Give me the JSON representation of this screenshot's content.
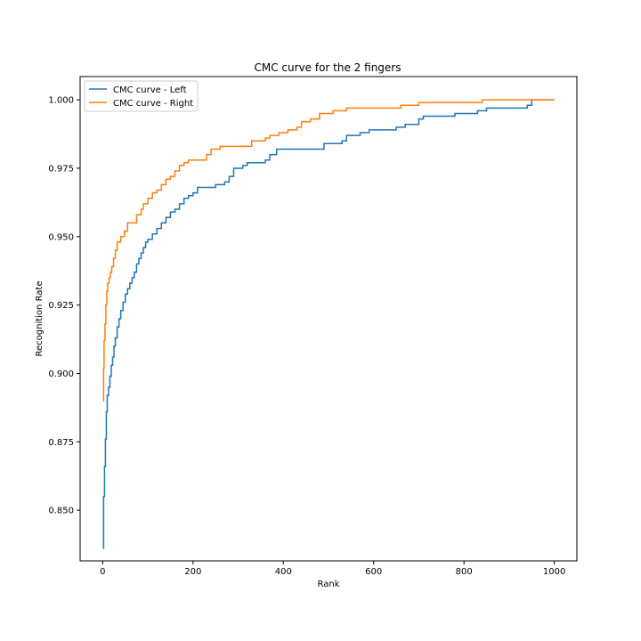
{
  "chart_data": {
    "type": "line",
    "title": "CMC curve for the 2 fingers",
    "xlabel": "Rank",
    "ylabel": "Recognition Rate",
    "xlim": [
      -50,
      1050
    ],
    "ylim": [
      0.8315,
      1.0085
    ],
    "xticks": [
      0,
      200,
      400,
      600,
      800,
      1000
    ],
    "yticks": [
      0.85,
      0.875,
      0.9,
      0.925,
      0.95,
      0.975,
      1.0
    ],
    "xtick_labels": [
      "0",
      "200",
      "400",
      "600",
      "800",
      "1000"
    ],
    "ytick_labels": [
      "0.850",
      "0.875",
      "0.900",
      "0.925",
      "0.950",
      "0.975",
      "1.000"
    ],
    "grid": false,
    "legend_position": "top-left",
    "series": [
      {
        "name": "CMC curve - Left",
        "color": "#1f77b4",
        "step": true,
        "points": [
          [
            1,
            0.836
          ],
          [
            2,
            0.855
          ],
          [
            4,
            0.866
          ],
          [
            6,
            0.876
          ],
          [
            8,
            0.886
          ],
          [
            10,
            0.892
          ],
          [
            13,
            0.895
          ],
          [
            16,
            0.899
          ],
          [
            19,
            0.903
          ],
          [
            22,
            0.906
          ],
          [
            25,
            0.91
          ],
          [
            28,
            0.913
          ],
          [
            32,
            0.917
          ],
          [
            36,
            0.92
          ],
          [
            40,
            0.923
          ],
          [
            45,
            0.926
          ],
          [
            50,
            0.929
          ],
          [
            55,
            0.931
          ],
          [
            60,
            0.933
          ],
          [
            65,
            0.935
          ],
          [
            70,
            0.937
          ],
          [
            75,
            0.94
          ],
          [
            80,
            0.942
          ],
          [
            85,
            0.944
          ],
          [
            90,
            0.946
          ],
          [
            95,
            0.948
          ],
          [
            100,
            0.949
          ],
          [
            110,
            0.951
          ],
          [
            120,
            0.953
          ],
          [
            130,
            0.955
          ],
          [
            140,
            0.957
          ],
          [
            150,
            0.959
          ],
          [
            160,
            0.96
          ],
          [
            170,
            0.962
          ],
          [
            180,
            0.964
          ],
          [
            190,
            0.965
          ],
          [
            200,
            0.966
          ],
          [
            210,
            0.968
          ],
          [
            240,
            0.968
          ],
          [
            250,
            0.969
          ],
          [
            270,
            0.97
          ],
          [
            280,
            0.972
          ],
          [
            290,
            0.975
          ],
          [
            310,
            0.976
          ],
          [
            320,
            0.977
          ],
          [
            350,
            0.977
          ],
          [
            360,
            0.978
          ],
          [
            370,
            0.98
          ],
          [
            385,
            0.982
          ],
          [
            470,
            0.982
          ],
          [
            490,
            0.984
          ],
          [
            530,
            0.985
          ],
          [
            540,
            0.987
          ],
          [
            570,
            0.988
          ],
          [
            590,
            0.989
          ],
          [
            650,
            0.99
          ],
          [
            670,
            0.991
          ],
          [
            700,
            0.993
          ],
          [
            710,
            0.994
          ],
          [
            760,
            0.994
          ],
          [
            780,
            0.995
          ],
          [
            830,
            0.996
          ],
          [
            850,
            0.997
          ],
          [
            940,
            0.998
          ],
          [
            950,
            1.0
          ],
          [
            1000,
            1.0
          ]
        ]
      },
      {
        "name": "CMC curve - Right",
        "color": "#ff7f0e",
        "step": true,
        "points": [
          [
            1,
            0.89
          ],
          [
            2,
            0.902
          ],
          [
            3,
            0.912
          ],
          [
            5,
            0.918
          ],
          [
            7,
            0.925
          ],
          [
            9,
            0.93
          ],
          [
            11,
            0.933
          ],
          [
            14,
            0.935
          ],
          [
            17,
            0.937
          ],
          [
            20,
            0.939
          ],
          [
            24,
            0.942
          ],
          [
            28,
            0.945
          ],
          [
            32,
            0.948
          ],
          [
            40,
            0.95
          ],
          [
            48,
            0.952
          ],
          [
            55,
            0.955
          ],
          [
            70,
            0.955
          ],
          [
            75,
            0.958
          ],
          [
            85,
            0.96
          ],
          [
            90,
            0.962
          ],
          [
            100,
            0.964
          ],
          [
            110,
            0.966
          ],
          [
            120,
            0.967
          ],
          [
            130,
            0.969
          ],
          [
            140,
            0.971
          ],
          [
            150,
            0.972
          ],
          [
            160,
            0.974
          ],
          [
            170,
            0.976
          ],
          [
            180,
            0.977
          ],
          [
            190,
            0.978
          ],
          [
            220,
            0.978
          ],
          [
            230,
            0.98
          ],
          [
            240,
            0.982
          ],
          [
            260,
            0.983
          ],
          [
            320,
            0.983
          ],
          [
            330,
            0.985
          ],
          [
            340,
            0.985
          ],
          [
            360,
            0.986
          ],
          [
            370,
            0.987
          ],
          [
            390,
            0.988
          ],
          [
            410,
            0.989
          ],
          [
            430,
            0.99
          ],
          [
            440,
            0.992
          ],
          [
            460,
            0.993
          ],
          [
            470,
            0.993
          ],
          [
            480,
            0.995
          ],
          [
            510,
            0.996
          ],
          [
            540,
            0.997
          ],
          [
            640,
            0.997
          ],
          [
            660,
            0.998
          ],
          [
            700,
            0.999
          ],
          [
            830,
            0.999
          ],
          [
            840,
            1.0
          ],
          [
            1000,
            1.0
          ]
        ]
      }
    ]
  }
}
